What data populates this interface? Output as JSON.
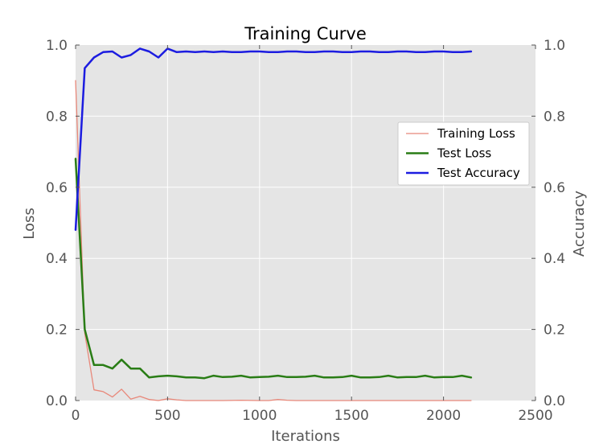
{
  "chart_data": {
    "type": "line",
    "title": "Training Curve",
    "xlabel": "Iterations",
    "ylabel_left": "Loss",
    "ylabel_right": "Accuracy",
    "xlim": [
      0,
      2500
    ],
    "ylim_left": [
      0,
      1.0
    ],
    "ylim_right": [
      0,
      1.0
    ],
    "x_ticks": [
      0,
      500,
      1000,
      1500,
      2000,
      2500
    ],
    "y_ticks_left": [
      "0.0",
      "0.2",
      "0.4",
      "0.6",
      "0.8",
      "1.0"
    ],
    "y_ticks_right": [
      "0.0",
      "0.2",
      "0.4",
      "0.6",
      "0.8",
      "1.0"
    ],
    "grid": true,
    "legend_position": "center-right",
    "background_color": "#e5e5e5",
    "series": [
      {
        "name": "Training Loss",
        "axis": "left",
        "color": "#e8887a",
        "x": [
          0,
          50,
          100,
          150,
          200,
          250,
          300,
          350,
          400,
          450,
          500,
          550,
          600,
          700,
          800,
          900,
          1000,
          1050,
          1100,
          1150,
          1200,
          1300,
          1400,
          1500,
          1600,
          1700,
          1800,
          1900,
          2000,
          2100,
          2150
        ],
        "y": [
          0.9,
          0.19,
          0.03,
          0.025,
          0.01,
          0.032,
          0.004,
          0.012,
          0.003,
          0.0,
          0.005,
          0.002,
          0.0,
          0.0,
          0.0,
          0.001,
          0.0,
          0.0,
          0.003,
          0.001,
          0.0,
          0.0,
          0.0,
          0.0,
          0.0,
          0.0,
          0.0,
          0.0,
          0.0,
          0.0,
          0.0
        ]
      },
      {
        "name": "Test Loss",
        "axis": "left",
        "color": "#2a7d16",
        "x": [
          0,
          50,
          100,
          150,
          200,
          250,
          300,
          350,
          400,
          450,
          500,
          550,
          600,
          650,
          700,
          750,
          800,
          850,
          900,
          950,
          1000,
          1050,
          1100,
          1150,
          1200,
          1250,
          1300,
          1350,
          1400,
          1450,
          1500,
          1550,
          1600,
          1650,
          1700,
          1750,
          1800,
          1850,
          1900,
          1950,
          2000,
          2050,
          2100,
          2150
        ],
        "y": [
          0.68,
          0.2,
          0.1,
          0.1,
          0.09,
          0.115,
          0.09,
          0.09,
          0.065,
          0.068,
          0.07,
          0.068,
          0.065,
          0.065,
          0.063,
          0.07,
          0.066,
          0.067,
          0.07,
          0.065,
          0.066,
          0.067,
          0.07,
          0.066,
          0.066,
          0.067,
          0.07,
          0.065,
          0.065,
          0.066,
          0.07,
          0.065,
          0.065,
          0.066,
          0.07,
          0.065,
          0.066,
          0.066,
          0.07,
          0.065,
          0.066,
          0.066,
          0.07,
          0.065
        ]
      },
      {
        "name": "Test Accuracy",
        "axis": "right",
        "color": "#1c1ce0",
        "x": [
          0,
          50,
          100,
          150,
          200,
          250,
          300,
          350,
          400,
          450,
          500,
          550,
          600,
          650,
          700,
          750,
          800,
          850,
          900,
          950,
          1000,
          1050,
          1100,
          1150,
          1200,
          1250,
          1300,
          1350,
          1400,
          1450,
          1500,
          1550,
          1600,
          1650,
          1700,
          1750,
          1800,
          1850,
          1900,
          1950,
          2000,
          2050,
          2100,
          2150
        ],
        "y": [
          0.48,
          0.935,
          0.965,
          0.98,
          0.982,
          0.965,
          0.972,
          0.99,
          0.982,
          0.965,
          0.99,
          0.98,
          0.982,
          0.98,
          0.982,
          0.98,
          0.982,
          0.98,
          0.98,
          0.982,
          0.982,
          0.98,
          0.98,
          0.982,
          0.982,
          0.98,
          0.98,
          0.982,
          0.982,
          0.98,
          0.98,
          0.982,
          0.982,
          0.98,
          0.98,
          0.982,
          0.982,
          0.98,
          0.98,
          0.982,
          0.982,
          0.98,
          0.98,
          0.982
        ]
      }
    ]
  }
}
